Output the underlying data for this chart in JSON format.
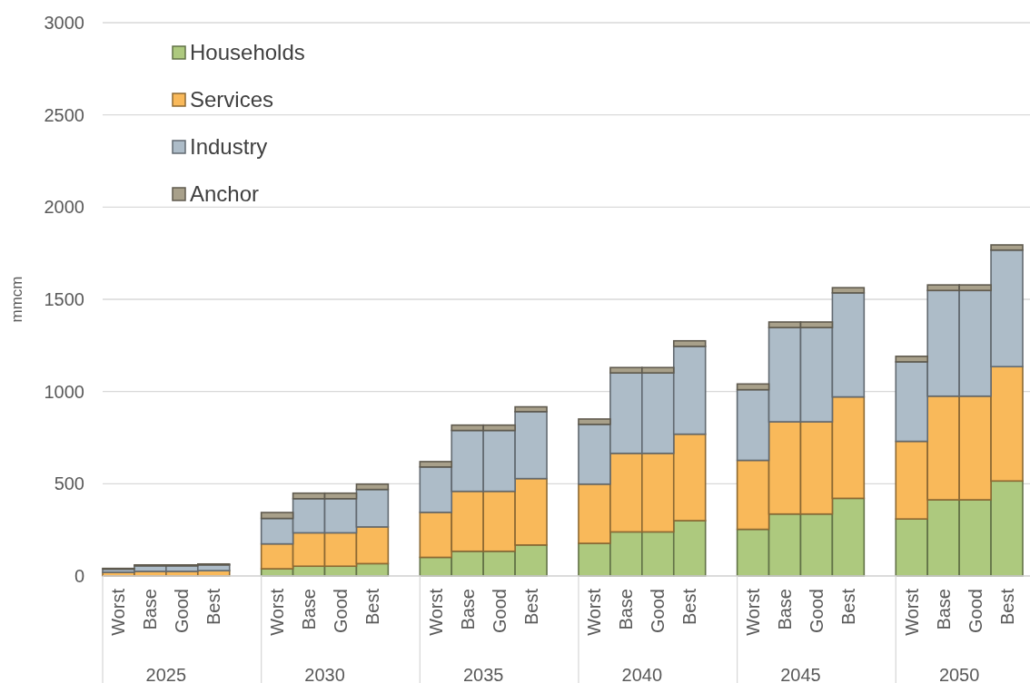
{
  "chart_data": {
    "type": "bar",
    "stacked": true,
    "ylabel": "mmcm",
    "ylim": [
      0,
      3000
    ],
    "yticks": [
      0,
      500,
      1000,
      1500,
      2000,
      2500,
      3000
    ],
    "grid": "y",
    "legend": "top left",
    "categories": [
      "Worst",
      "Base",
      "Good",
      "Best",
      null,
      "Worst",
      "Base",
      "Good",
      "Best",
      null,
      "Worst",
      "Base",
      "Good",
      "Best",
      null,
      "Worst",
      "Base",
      "Good",
      "Best",
      null,
      "Worst",
      "Base",
      "Good",
      "Best",
      null,
      "Worst",
      "Base",
      "Good",
      "Best"
    ],
    "annotations": [
      "2025",
      "2030",
      "2035",
      "2040",
      "2045",
      "2050"
    ],
    "series": [
      {
        "name": "Households",
        "color": "#adc97e",
        "values": [
          null,
          null,
          null,
          null,
          null,
          39,
          53,
          53,
          67,
          null,
          101,
          134,
          134,
          168,
          null,
          177,
          239,
          239,
          300,
          null,
          253,
          336,
          336,
          421,
          null,
          309,
          413,
          413,
          515
        ]
      },
      {
        "name": "Services",
        "color": "#f9b95a",
        "values": [
          20,
          25,
          25,
          29,
          null,
          135,
          181,
          181,
          199,
          null,
          244,
          325,
          325,
          360,
          null,
          321,
          426,
          426,
          469,
          null,
          374,
          500,
          500,
          550,
          null,
          421,
          562,
          562,
          620
        ]
      },
      {
        "name": "Industry",
        "color": "#adbcc8",
        "values": [
          17,
          30,
          30,
          31,
          null,
          138,
          185,
          185,
          203,
          null,
          246,
          330,
          330,
          363,
          null,
          324,
          436,
          436,
          476,
          null,
          383,
          511,
          511,
          564,
          null,
          431,
          573,
          573,
          632
        ]
      },
      {
        "name": "Anchor",
        "color": "#a8a08a",
        "values": [
          4,
          5,
          5,
          5,
          null,
          32,
          30,
          30,
          29,
          null,
          29,
          29,
          29,
          26,
          null,
          29,
          29,
          29,
          30,
          null,
          31,
          30,
          30,
          28,
          null,
          30,
          30,
          30,
          28
        ]
      }
    ]
  }
}
